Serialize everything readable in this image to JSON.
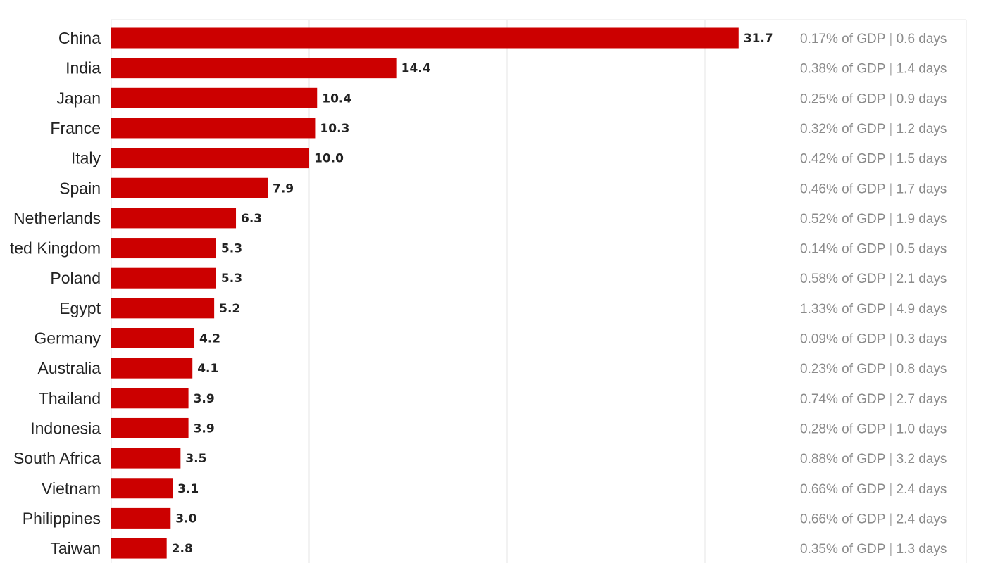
{
  "chart_data": {
    "type": "bar",
    "orientation": "horizontal",
    "categories": [
      "China",
      "India",
      "Japan",
      "France",
      "Italy",
      "Spain",
      "Netherlands",
      "ted Kingdom",
      "Poland",
      "Egypt",
      "Germany",
      "Australia",
      "Thailand",
      "Indonesia",
      "South Africa",
      "Vietnam",
      "Philippines",
      "Taiwan"
    ],
    "values": [
      31.7,
      14.4,
      10.4,
      10.3,
      10.0,
      7.9,
      6.3,
      5.3,
      5.3,
      5.2,
      4.2,
      4.1,
      3.9,
      3.9,
      3.5,
      3.1,
      3.0,
      2.8
    ],
    "value_labels": [
      "31.7",
      "14.4",
      "10.4",
      "10.3",
      "10.0",
      "7.9",
      "6.3",
      "5.3",
      "5.3",
      "5.2",
      "4.2",
      "4.1",
      "3.9",
      "3.9",
      "3.5",
      "3.1",
      "3.0",
      "2.8"
    ],
    "gdp_share": [
      "0.17%",
      "0.38%",
      "0.25%",
      "0.32%",
      "0.42%",
      "0.46%",
      "0.52%",
      "0.14%",
      "0.58%",
      "1.33%",
      "0.09%",
      "0.23%",
      "0.74%",
      "0.28%",
      "0.88%",
      "0.66%",
      "0.66%",
      "0.35%"
    ],
    "days": [
      "0.6",
      "1.4",
      "0.9",
      "1.2",
      "1.5",
      "1.7",
      "1.9",
      "0.5",
      "2.1",
      "4.9",
      "0.3",
      "0.8",
      "2.7",
      "1.0",
      "3.2",
      "2.4",
      "2.4",
      "1.3"
    ],
    "gdp_suffix": " of GDP",
    "separator": "|",
    "days_suffix": " days",
    "xlim": [
      0,
      35
    ],
    "gridlines": [
      0,
      10,
      20,
      30
    ],
    "grid": true,
    "colors": {
      "bar": "#cc0000",
      "text": "#222222",
      "muted": "#8a8a8a",
      "grid": "#e6e6e6"
    }
  }
}
